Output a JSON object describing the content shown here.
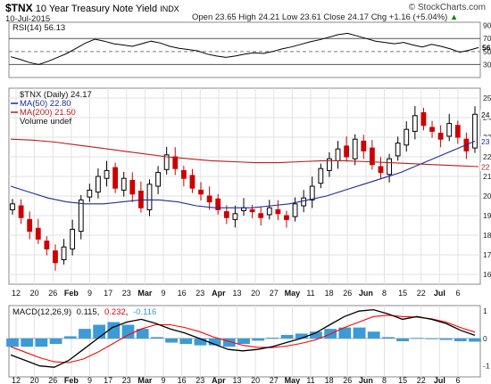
{
  "header": {
    "symbol": "$TNX",
    "name": "10 Year Treasury Note Yield",
    "exchange": "INDX",
    "date": "10-Jul-2015",
    "ohlc": "Open 23.65  High 24.21  Low 23.61  Close 24.17  Chg +1.16 (+5.04%)",
    "change_arrow": "▲",
    "copyright": "© StockCharts.com"
  },
  "colors": {
    "up": "#000000",
    "down": "#cc0000",
    "ma50": "#1c2c9c",
    "ma200": "#c01a1a",
    "macd_line": "#000000",
    "signal_line": "#ff0000",
    "histogram": "#3b9bd6",
    "rsi_line": "#000000",
    "grid": "#e2e2e2"
  },
  "chart_data": [
    {
      "type": "line",
      "panel": "rsi",
      "label": "RSI(14) 56.13",
      "ylim": [
        10,
        95
      ],
      "ticks": [
        90,
        70,
        50,
        30
      ],
      "reference_lines": [
        70,
        50,
        30
      ],
      "last_value": 56.13,
      "values": [
        42,
        38,
        33,
        30,
        35,
        41,
        47,
        55,
        63,
        69,
        66,
        62,
        60,
        58,
        62,
        66,
        63,
        58,
        55,
        53,
        51,
        46,
        43,
        41,
        43,
        46,
        48,
        47,
        50,
        54,
        57,
        61,
        65,
        68,
        72,
        76,
        78,
        74,
        70,
        66,
        64,
        62,
        64,
        60,
        57,
        61,
        58,
        54,
        49,
        52,
        56
      ]
    },
    {
      "type": "candlestick",
      "panel": "price",
      "legend": [
        "$TNX (Daily) 24.17",
        "MA(50) 22.80",
        "MA(200) 21.50",
        "Volume undef"
      ],
      "ylim": [
        15.5,
        25.5
      ],
      "ticks": [
        25,
        24,
        23,
        22,
        21,
        20,
        19,
        18,
        17,
        16
      ],
      "last_price": 24.17,
      "ma50_last": 22.8,
      "ma200_last": 21.5,
      "x_labels": [
        "12",
        "20",
        "26",
        "Feb",
        "9",
        "17",
        "23",
        "Mar",
        "9",
        "16",
        "23",
        "Apr",
        "13",
        "20",
        "27",
        "May",
        "11",
        "18",
        "26",
        "Jun",
        "8",
        "15",
        "22",
        "Jul",
        "6"
      ],
      "closes": [
        19.6,
        18.9,
        18.2,
        17.8,
        17.3,
        16.6,
        17.4,
        18.3,
        19.8,
        20.3,
        21.0,
        21.3,
        20.4,
        20.9,
        20.1,
        19.4,
        20.6,
        21.2,
        22.1,
        21.4,
        20.9,
        20.4,
        20.1,
        19.7,
        19.3,
        18.9,
        19.1,
        19.4,
        19.2,
        18.9,
        19.4,
        19.1,
        18.8,
        19.6,
        19.9,
        20.5,
        21.4,
        21.9,
        22.4,
        22.0,
        22.9,
        22.3,
        21.6,
        21.2,
        21.9,
        22.7,
        23.4,
        24.1,
        23.6,
        23.3,
        22.9,
        23.7,
        23.0,
        22.3,
        24.17
      ],
      "ma50": [
        20.5,
        20.2,
        19.9,
        19.7,
        19.6,
        19.6,
        19.7,
        19.8,
        19.8,
        19.7,
        19.5,
        19.4,
        19.4,
        19.4,
        19.5,
        19.6,
        19.8,
        20.0,
        20.3,
        20.6,
        20.9,
        21.2,
        21.6,
        22.0,
        22.4,
        22.8
      ],
      "ma200": [
        22.9,
        22.85,
        22.75,
        22.6,
        22.45,
        22.3,
        22.15,
        22.0,
        21.9,
        21.8,
        21.75,
        21.7,
        21.7,
        21.75,
        21.8,
        21.8,
        21.75,
        21.7,
        21.65,
        21.6,
        21.55,
        21.5
      ]
    },
    {
      "type": "bar",
      "panel": "macd",
      "label": "MACD(12,26,9)",
      "macd_value": "0.115",
      "signal_value": "0.232",
      "hist_value": "-0.116",
      "ylim": [
        -1.4,
        1.2
      ],
      "ticks": [
        1,
        0,
        -1
      ],
      "macd": [
        -0.6,
        -0.8,
        -1.0,
        -1.05,
        -0.8,
        -0.4,
        0.0,
        0.4,
        0.6,
        0.7,
        0.55,
        0.35,
        0.2,
        0.0,
        -0.2,
        -0.4,
        -0.45,
        -0.4,
        -0.3,
        -0.15,
        0.0,
        0.2,
        0.5,
        0.8,
        1.0,
        1.05,
        0.9,
        0.7,
        0.8,
        0.7,
        0.55,
        0.3,
        0.115
      ],
      "signal": [
        -0.3,
        -0.5,
        -0.7,
        -0.85,
        -0.88,
        -0.75,
        -0.5,
        -0.2,
        0.1,
        0.35,
        0.5,
        0.5,
        0.4,
        0.25,
        0.05,
        -0.1,
        -0.25,
        -0.32,
        -0.33,
        -0.28,
        -0.18,
        -0.05,
        0.15,
        0.4,
        0.6,
        0.8,
        0.85,
        0.8,
        0.78,
        0.72,
        0.6,
        0.4,
        0.232
      ],
      "histogram": [
        -0.3,
        -0.3,
        -0.3,
        -0.2,
        0.08,
        0.35,
        0.5,
        0.6,
        0.5,
        0.35,
        0.05,
        -0.15,
        -0.2,
        -0.25,
        -0.25,
        -0.3,
        -0.2,
        -0.08,
        0.03,
        0.13,
        0.18,
        0.25,
        0.35,
        0.4,
        0.4,
        0.25,
        0.05,
        -0.1,
        0.02,
        -0.02,
        -0.05,
        -0.1,
        -0.116
      ]
    }
  ]
}
